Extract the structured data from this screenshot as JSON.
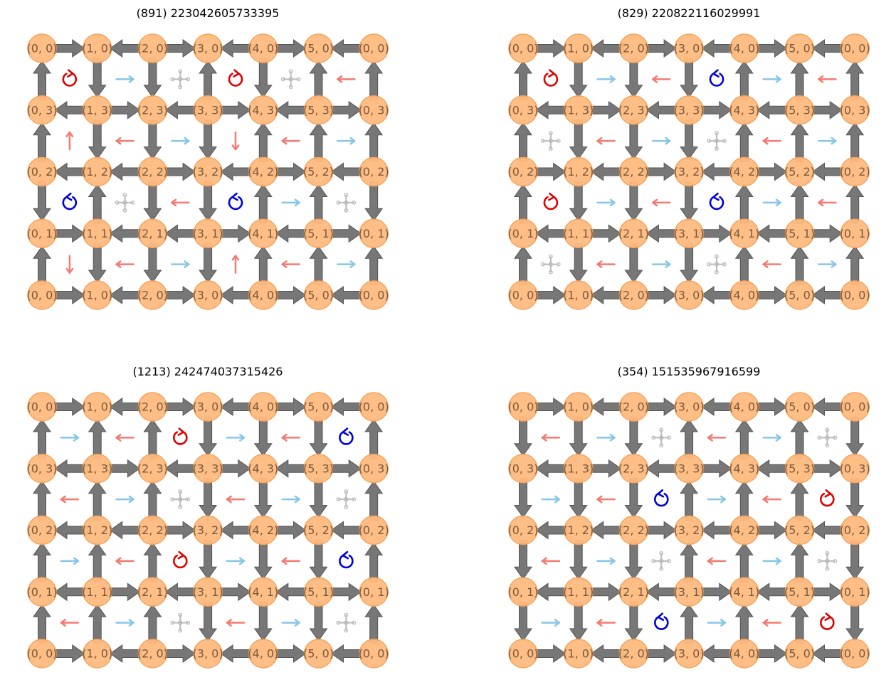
{
  "colors": {
    "node_fill": "#ffbb80",
    "node_stroke": "#f5a45d",
    "edge": "#777777",
    "edge_stroke": "#555555",
    "arrow_red": "#f27b72",
    "arrow_blue": "#87c6e6",
    "cycle_red": "#e00000",
    "cycle_blue": "#0000dd",
    "cross": "#bbbbbb"
  },
  "col_labels": [
    "0",
    "1",
    "2",
    "3",
    "4",
    "5",
    "0"
  ],
  "row_labels": [
    "0",
    "3",
    "2",
    "1",
    "0"
  ],
  "panels": [
    {
      "title": "(891) 223042605733395",
      "h": [
        [
          "R",
          "L",
          "R",
          "L",
          "R",
          "L"
        ],
        [
          "L",
          "R",
          "L",
          "R",
          "L",
          "R"
        ],
        [
          "L",
          "L",
          "R",
          "L",
          "R",
          "L"
        ],
        [
          "R",
          "L",
          "L",
          "R",
          "L",
          "R"
        ],
        [
          "R",
          "L",
          "R",
          "L",
          "R",
          "L"
        ]
      ],
      "v": [
        [
          "U",
          "D",
          "D",
          "U",
          "D",
          "U",
          "U"
        ],
        [
          "U",
          "D",
          "D",
          "D",
          "U",
          "U",
          "U"
        ],
        [
          "D",
          "U",
          "D",
          "D",
          "U",
          "U",
          "D"
        ],
        [
          "U",
          "D",
          "D",
          "D",
          "U",
          "U",
          "U"
        ]
      ],
      "cells": [
        [
          "cw",
          "ar",
          "x",
          "cw",
          "x",
          "al"
        ],
        [
          "au",
          "al",
          "ar",
          "ad",
          "al",
          "ar"
        ],
        [
          "ccw",
          "x",
          "al",
          "ccw",
          "ar",
          "x"
        ],
        [
          "ad",
          "al",
          "ar",
          "au",
          "al",
          "ar"
        ]
      ]
    },
    {
      "title": "(829) 220822116029991",
      "h": [
        [
          "R",
          "L",
          "R",
          "L",
          "R",
          "L"
        ],
        [
          "L",
          "R",
          "L",
          "R",
          "L",
          "R"
        ],
        [
          "R",
          "L",
          "R",
          "L",
          "R",
          "L"
        ],
        [
          "L",
          "R",
          "L",
          "R",
          "L",
          "R"
        ],
        [
          "R",
          "L",
          "R",
          "L",
          "R",
          "L"
        ]
      ],
      "v": [
        [
          "U",
          "D",
          "D",
          "D",
          "U",
          "U",
          "U"
        ],
        [
          "U",
          "D",
          "D",
          "D",
          "U",
          "U",
          "U"
        ],
        [
          "U",
          "D",
          "D",
          "D",
          "U",
          "U",
          "U"
        ],
        [
          "U",
          "D",
          "D",
          "D",
          "U",
          "U",
          "U"
        ]
      ],
      "cells": [
        [
          "cw",
          "ar",
          "al",
          "ccw",
          "ar",
          "al"
        ],
        [
          "x",
          "al",
          "ar",
          "x",
          "al",
          "ar"
        ],
        [
          "cw",
          "ar",
          "al",
          "ccw",
          "ar",
          "al"
        ],
        [
          "x",
          "al",
          "ar",
          "x",
          "al",
          "ar"
        ]
      ]
    },
    {
      "title": "(1213) 242474037315426",
      "h": [
        [
          "R",
          "L",
          "R",
          "L",
          "R",
          "L"
        ],
        [
          "L",
          "R",
          "L",
          "R",
          "L",
          "R"
        ],
        [
          "L",
          "L",
          "R",
          "L",
          "R",
          "L"
        ],
        [
          "L",
          "R",
          "L",
          "R",
          "L",
          "R"
        ],
        [
          "R",
          "L",
          "R",
          "L",
          "R",
          "L"
        ]
      ],
      "v": [
        [
          "U",
          "U",
          "U",
          "D",
          "D",
          "D",
          "U"
        ],
        [
          "U",
          "U",
          "U",
          "D",
          "D",
          "D",
          "U"
        ],
        [
          "U",
          "U",
          "U",
          "D",
          "D",
          "D",
          "U"
        ],
        [
          "U",
          "U",
          "U",
          "D",
          "D",
          "D",
          "U"
        ]
      ],
      "cells": [
        [
          "ar",
          "al",
          "cw",
          "ar",
          "al",
          "ccw"
        ],
        [
          "al",
          "ar",
          "x",
          "al",
          "ar",
          "x"
        ],
        [
          "ar",
          "al",
          "cw",
          "ar",
          "al",
          "ccw"
        ],
        [
          "al",
          "ar",
          "x",
          "al",
          "ar",
          "x"
        ]
      ]
    },
    {
      "title": "(354) 151535967916599",
      "h": [
        [
          "R",
          "L",
          "R",
          "L",
          "R",
          "L"
        ],
        [
          "L",
          "R",
          "L",
          "R",
          "L",
          "R"
        ],
        [
          "L",
          "L",
          "R",
          "L",
          "R",
          "L"
        ],
        [
          "L",
          "R",
          "L",
          "R",
          "L",
          "R"
        ],
        [
          "R",
          "L",
          "R",
          "L",
          "R",
          "L"
        ]
      ],
      "v": [
        [
          "D",
          "D",
          "D",
          "U",
          "U",
          "U",
          "D"
        ],
        [
          "D",
          "D",
          "D",
          "U",
          "U",
          "U",
          "D"
        ],
        [
          "D",
          "D",
          "D",
          "U",
          "U",
          "U",
          "D"
        ],
        [
          "D",
          "D",
          "D",
          "U",
          "U",
          "U",
          "D"
        ]
      ],
      "cells": [
        [
          "al",
          "ar",
          "x",
          "al",
          "ar",
          "x"
        ],
        [
          "ar",
          "al",
          "ccw",
          "ar",
          "al",
          "cw"
        ],
        [
          "al",
          "ar",
          "x",
          "al",
          "ar",
          "x"
        ],
        [
          "ar",
          "al",
          "ccw",
          "ar",
          "al",
          "cw"
        ]
      ]
    }
  ]
}
